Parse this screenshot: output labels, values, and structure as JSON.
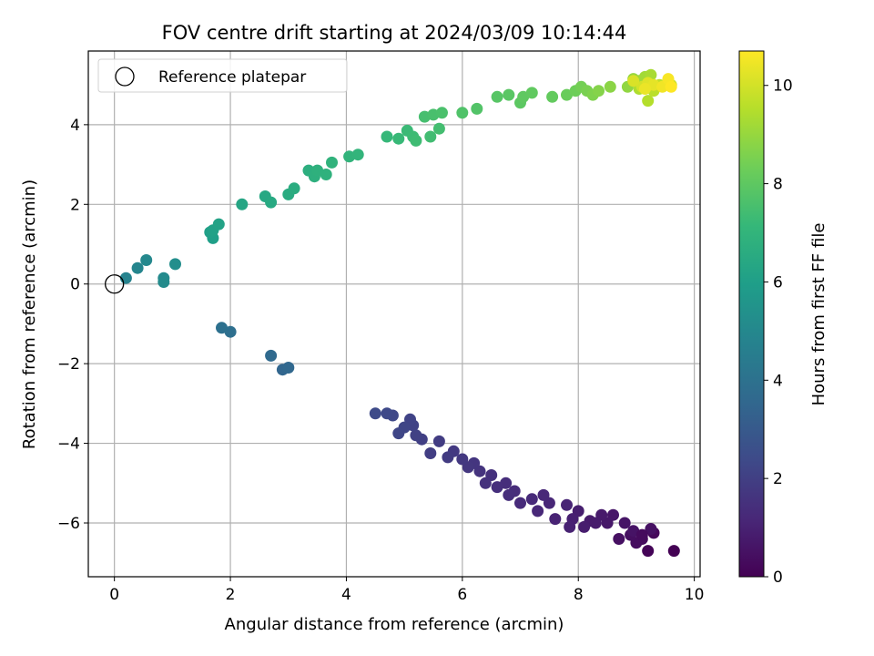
{
  "chart_data": {
    "type": "scatter",
    "title": "FOV centre drift starting at 2024/03/09 10:14:44",
    "xlabel": "Angular distance from reference (arcmin)",
    "ylabel": "Rotation from reference (arcmin)",
    "xlim": [
      -0.45,
      10.1
    ],
    "ylim": [
      -7.35,
      5.85
    ],
    "x_ticks": [
      0,
      2,
      4,
      6,
      8,
      10
    ],
    "y_ticks": [
      -6,
      -4,
      -2,
      0,
      2,
      4
    ],
    "grid": true,
    "legend": {
      "placement": "top-left",
      "entries": [
        "Reference platepar"
      ]
    },
    "reference_point": {
      "x": 0,
      "y": 0,
      "label": "Reference platepar"
    },
    "colorbar": {
      "label": "Hours from first FF file",
      "colormap": "viridis",
      "range": [
        0,
        10.7
      ],
      "ticks": [
        0,
        2,
        4,
        6,
        8,
        10
      ]
    },
    "points": [
      [
        9.65,
        -6.7,
        0.0
      ],
      [
        9.2,
        -6.7,
        0.1
      ],
      [
        9.3,
        -6.25,
        0.2
      ],
      [
        9.1,
        -6.4,
        0.3
      ],
      [
        9.0,
        -6.5,
        0.35
      ],
      [
        8.9,
        -6.3,
        0.4
      ],
      [
        8.7,
        -6.4,
        0.45
      ],
      [
        9.25,
        -6.15,
        0.5
      ],
      [
        8.95,
        -6.2,
        0.55
      ],
      [
        8.8,
        -6.0,
        0.6
      ],
      [
        8.6,
        -5.8,
        0.65
      ],
      [
        8.5,
        -6.0,
        0.7
      ],
      [
        8.4,
        -5.8,
        0.75
      ],
      [
        8.2,
        -5.95,
        0.8
      ],
      [
        8.1,
        -6.1,
        0.85
      ],
      [
        8.0,
        -5.7,
        0.9
      ],
      [
        7.9,
        -5.9,
        0.95
      ],
      [
        7.85,
        -6.1,
        1.0
      ],
      [
        7.6,
        -5.9,
        1.05
      ],
      [
        7.8,
        -5.55,
        1.1
      ],
      [
        7.5,
        -5.5,
        1.15
      ],
      [
        7.3,
        -5.7,
        1.2
      ],
      [
        7.2,
        -5.4,
        1.25
      ],
      [
        7.0,
        -5.5,
        1.3
      ],
      [
        6.9,
        -5.2,
        1.35
      ],
      [
        6.75,
        -5.0,
        1.4
      ],
      [
        6.6,
        -5.1,
        1.45
      ],
      [
        6.5,
        -4.8,
        1.5
      ],
      [
        6.4,
        -5.0,
        1.55
      ],
      [
        6.3,
        -4.7,
        1.6
      ],
      [
        6.2,
        -4.5,
        1.65
      ],
      [
        6.1,
        -4.6,
        1.7
      ],
      [
        6.0,
        -4.4,
        1.75
      ],
      [
        5.85,
        -4.2,
        1.8
      ],
      [
        5.75,
        -4.35,
        1.85
      ],
      [
        5.6,
        -3.95,
        1.9
      ],
      [
        5.45,
        -4.25,
        1.95
      ],
      [
        5.3,
        -3.9,
        2.0
      ],
      [
        5.2,
        -3.8,
        2.05
      ],
      [
        5.15,
        -3.55,
        2.1
      ],
      [
        5.1,
        -3.4,
        2.15
      ],
      [
        5.0,
        -3.6,
        2.2
      ],
      [
        4.9,
        -3.75,
        2.25
      ],
      [
        4.8,
        -3.3,
        2.3
      ],
      [
        4.7,
        -3.25,
        2.35
      ],
      [
        4.5,
        -3.25,
        2.4
      ],
      [
        7.4,
        -5.3,
        1.2
      ],
      [
        8.3,
        -6.0,
        0.8
      ],
      [
        9.1,
        -6.3,
        0.3
      ],
      [
        6.8,
        -5.3,
        1.4
      ],
      [
        2.9,
        -2.15,
        3.5
      ],
      [
        3.0,
        -2.1,
        3.55
      ],
      [
        2.7,
        -1.8,
        3.65
      ],
      [
        2.0,
        -1.2,
        3.9
      ],
      [
        1.85,
        -1.1,
        3.95
      ],
      [
        0.2,
        0.15,
        4.8
      ],
      [
        0.4,
        0.4,
        4.9
      ],
      [
        0.55,
        0.6,
        5.0
      ],
      [
        0.85,
        0.15,
        5.1
      ],
      [
        0.85,
        0.05,
        5.15
      ],
      [
        1.05,
        0.5,
        5.25
      ],
      [
        1.7,
        1.15,
        6.0
      ],
      [
        1.65,
        1.3,
        6.05
      ],
      [
        1.7,
        1.35,
        6.1
      ],
      [
        1.8,
        1.5,
        6.15
      ],
      [
        2.2,
        2.0,
        6.3
      ],
      [
        2.6,
        2.2,
        6.4
      ],
      [
        2.7,
        2.05,
        6.45
      ],
      [
        3.0,
        2.25,
        6.55
      ],
      [
        3.1,
        2.4,
        6.6
      ],
      [
        3.35,
        2.85,
        6.7
      ],
      [
        3.45,
        2.7,
        6.75
      ],
      [
        3.5,
        2.85,
        6.8
      ],
      [
        3.65,
        2.75,
        6.85
      ],
      [
        3.75,
        3.05,
        6.9
      ],
      [
        4.05,
        3.2,
        6.95
      ],
      [
        4.2,
        3.25,
        7.0
      ],
      [
        4.7,
        3.7,
        7.15
      ],
      [
        4.9,
        3.65,
        7.2
      ],
      [
        5.05,
        3.85,
        7.25
      ],
      [
        5.15,
        3.7,
        7.3
      ],
      [
        5.2,
        3.6,
        7.35
      ],
      [
        5.45,
        3.7,
        7.4
      ],
      [
        5.6,
        3.9,
        7.45
      ],
      [
        5.35,
        4.2,
        7.5
      ],
      [
        5.5,
        4.25,
        7.55
      ],
      [
        5.65,
        4.3,
        7.6
      ],
      [
        6.0,
        4.3,
        7.7
      ],
      [
        6.25,
        4.4,
        7.75
      ],
      [
        6.6,
        4.7,
        7.85
      ],
      [
        6.8,
        4.75,
        7.9
      ],
      [
        7.0,
        4.55,
        7.95
      ],
      [
        7.05,
        4.7,
        8.0
      ],
      [
        7.2,
        4.8,
        8.05
      ],
      [
        7.55,
        4.7,
        8.1
      ],
      [
        7.8,
        4.75,
        8.2
      ],
      [
        7.95,
        4.85,
        8.3
      ],
      [
        8.05,
        4.95,
        8.4
      ],
      [
        8.15,
        4.85,
        8.5
      ],
      [
        8.25,
        4.75,
        8.6
      ],
      [
        8.35,
        4.85,
        8.7
      ],
      [
        8.55,
        4.95,
        8.8
      ],
      [
        8.85,
        4.95,
        8.9
      ],
      [
        8.95,
        5.15,
        9.0
      ],
      [
        9.05,
        5.1,
        9.1
      ],
      [
        9.15,
        5.2,
        9.2
      ],
      [
        9.25,
        5.25,
        9.3
      ],
      [
        9.05,
        4.9,
        9.4
      ],
      [
        9.2,
        4.6,
        9.5
      ],
      [
        9.3,
        4.85,
        9.6
      ],
      [
        9.4,
        5.0,
        9.7
      ],
      [
        9.55,
        5.1,
        9.8
      ],
      [
        9.6,
        5.0,
        9.9
      ],
      [
        9.1,
        4.95,
        10.0
      ],
      [
        8.95,
        5.1,
        10.1
      ],
      [
        9.2,
        5.05,
        10.2
      ],
      [
        9.3,
        5.0,
        10.3
      ],
      [
        9.15,
        4.9,
        10.4
      ],
      [
        9.45,
        4.95,
        10.5
      ],
      [
        9.55,
        5.15,
        10.6
      ],
      [
        9.6,
        4.95,
        10.7
      ]
    ]
  }
}
